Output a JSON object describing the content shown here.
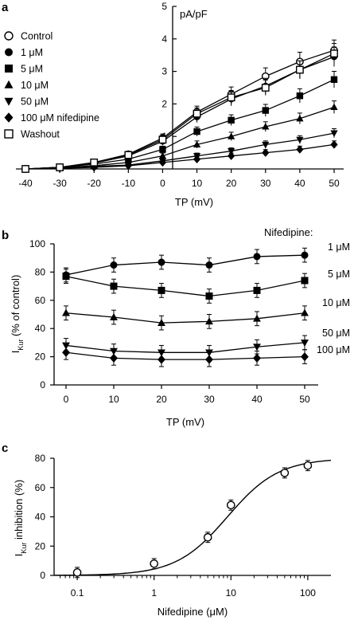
{
  "chart_data": [
    {
      "panel_label": "a",
      "type": "line",
      "xlabel": "TP (mV)",
      "ylabel": "pA/pF",
      "xlim": [
        -40,
        50
      ],
      "ylim": [
        0,
        5
      ],
      "x_ticks": [
        "-40",
        "-30",
        "-20",
        "-10",
        "0",
        "10",
        "20",
        "30",
        "40",
        "50"
      ],
      "y_ticks": [
        "0",
        "1",
        "2",
        "3",
        "4",
        "5"
      ],
      "x": [
        -40,
        -30,
        -20,
        -10,
        0,
        10,
        20,
        30,
        40,
        50
      ],
      "legend_position": "top-left",
      "series": [
        {
          "name": "Control",
          "marker": "circle-open",
          "values": [
            0.0,
            0.05,
            0.2,
            0.45,
            0.95,
            1.75,
            2.3,
            2.85,
            3.3,
            3.65
          ]
        },
        {
          "name": "1 μM",
          "marker": "circle-filled",
          "values": [
            0.0,
            0.05,
            0.18,
            0.4,
            0.85,
            1.6,
            2.15,
            2.55,
            3.05,
            3.45
          ]
        },
        {
          "name": "5 μM",
          "marker": "square-filled",
          "values": [
            0.0,
            0.04,
            0.15,
            0.3,
            0.6,
            1.15,
            1.5,
            1.8,
            2.25,
            2.75
          ]
        },
        {
          "name": "10 μM",
          "marker": "triangle-up",
          "values": [
            0.0,
            0.03,
            0.1,
            0.2,
            0.4,
            0.75,
            1.0,
            1.3,
            1.55,
            1.9
          ]
        },
        {
          "name": "50 μM",
          "marker": "triangle-down",
          "values": [
            0.0,
            0.02,
            0.08,
            0.12,
            0.25,
            0.4,
            0.55,
            0.75,
            0.9,
            1.1
          ]
        },
        {
          "name": "100 μM nifedipine",
          "marker": "diamond",
          "values": [
            0.0,
            0.02,
            0.05,
            0.1,
            0.2,
            0.3,
            0.4,
            0.5,
            0.6,
            0.75
          ]
        },
        {
          "name": "Washout",
          "marker": "square-open",
          "values": [
            0.0,
            0.05,
            0.2,
            0.43,
            0.9,
            1.7,
            2.2,
            2.5,
            3.05,
            3.55
          ]
        }
      ]
    },
    {
      "panel_label": "b",
      "type": "line",
      "xlabel": "TP (mV)",
      "ylabel_main": "I",
      "ylabel_sub": "Kur",
      "ylabel_rest": " (% of control)",
      "xlim": [
        0,
        50
      ],
      "ylim": [
        0,
        100
      ],
      "x_ticks": [
        "0",
        "10",
        "20",
        "30",
        "40",
        "50"
      ],
      "y_ticks": [
        "0",
        "20",
        "40",
        "60",
        "80",
        "100"
      ],
      "x": [
        0,
        10,
        20,
        30,
        40,
        50
      ],
      "legend_title": "Nifedipine:",
      "legend_position": "right",
      "series": [
        {
          "name": "1 μM",
          "marker": "circle-filled",
          "values": [
            78,
            85,
            87,
            85,
            91,
            92
          ]
        },
        {
          "name": "5 μM",
          "marker": "square-filled",
          "values": [
            77,
            70,
            67,
            63,
            67,
            74
          ]
        },
        {
          "name": "10 μM",
          "marker": "triangle-up",
          "values": [
            51,
            48,
            44,
            45,
            47,
            51
          ]
        },
        {
          "name": "50 μM",
          "marker": "triangle-down",
          "values": [
            28,
            24,
            23,
            23,
            27,
            30
          ]
        },
        {
          "name": "100 μM",
          "marker": "diamond",
          "values": [
            23,
            19,
            18,
            18,
            19,
            20
          ]
        }
      ]
    },
    {
      "panel_label": "c",
      "type": "scatter",
      "xlabel": "Nifedipine (μM)",
      "ylabel_main": "I",
      "ylabel_sub": "Kur",
      "ylabel_rest": " inhibition (%)",
      "x_scale": "log",
      "xlim": [
        0.05,
        200
      ],
      "ylim": [
        0,
        80
      ],
      "x_ticks": [
        "0.1",
        "1",
        "10",
        "100"
      ],
      "y_ticks": [
        "0",
        "20",
        "40",
        "60",
        "80"
      ],
      "x": [
        0.1,
        1,
        5,
        10,
        50,
        100
      ],
      "series": [
        {
          "marker": "circle-open",
          "values": [
            2,
            8,
            26,
            48,
            70,
            75
          ]
        }
      ],
      "fit": "sigmoid curve"
    }
  ]
}
